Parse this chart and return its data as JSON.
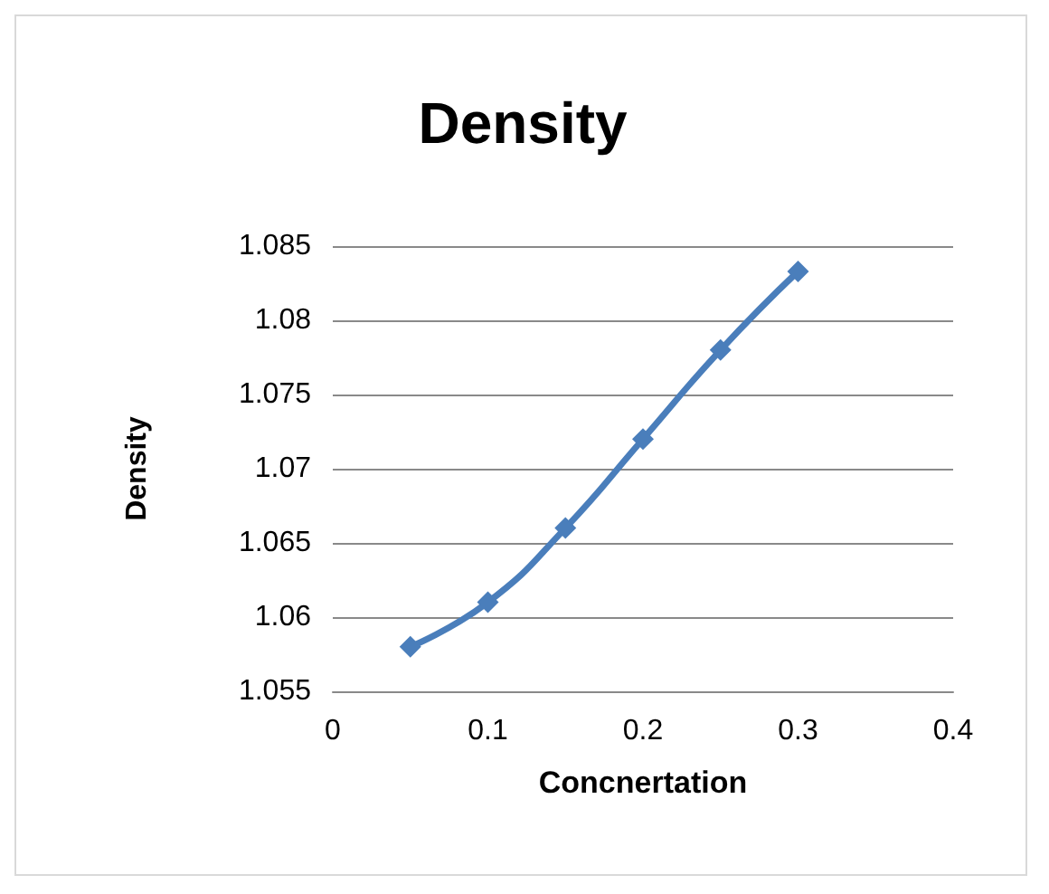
{
  "chart_data": {
    "type": "line",
    "title": "Density",
    "xlabel": "Concnertation",
    "ylabel": "Density",
    "x": [
      0.05,
      0.1,
      0.15,
      0.2,
      0.25,
      0.3
    ],
    "series": [
      {
        "color": "#4a7ebb",
        "values": [
          1.058,
          1.061,
          1.066,
          1.072,
          1.078,
          1.0833
        ]
      }
    ],
    "xlim": [
      0,
      0.4
    ],
    "xticks": [
      0,
      0.1,
      0.2,
      0.3,
      0.4
    ],
    "ylim": [
      1.055,
      1.085
    ],
    "yticks": [
      1.055,
      1.06,
      1.065,
      1.07,
      1.075,
      1.08,
      1.085
    ],
    "grid": "y",
    "marker": "diamond",
    "line_style": "solid"
  }
}
